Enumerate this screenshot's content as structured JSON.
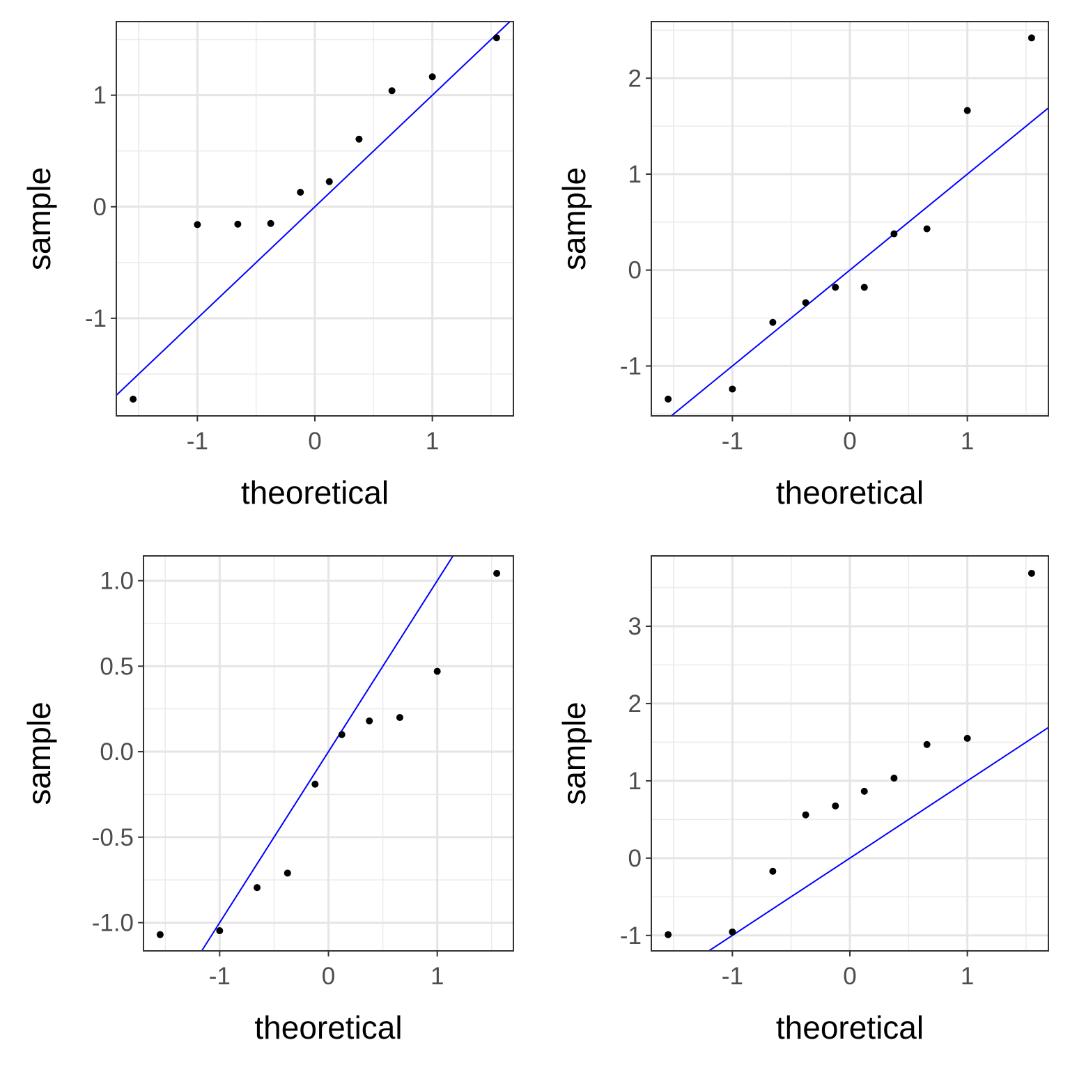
{
  "chart_data": [
    {
      "type": "scatter",
      "title": "",
      "xlabel": "theoretical",
      "ylabel": "sample",
      "xlim": [
        -1.69,
        1.69
      ],
      "ylim": [
        -1.875,
        1.66
      ],
      "xticks": [
        -1,
        0,
        1
      ],
      "xtick_labels": [
        "-1",
        "0",
        "1"
      ],
      "yticks": [
        -1,
        0,
        1
      ],
      "ytick_labels": [
        "-1",
        "0",
        "1"
      ],
      "x": [
        -1.547,
        -1.0,
        -0.656,
        -0.376,
        -0.123,
        0.123,
        0.376,
        0.656,
        1.0,
        1.547
      ],
      "y": [
        -1.725,
        -0.16,
        -0.156,
        -0.15,
        0.13,
        0.225,
        0.606,
        1.04,
        1.165,
        1.515
      ],
      "reference_line": {
        "slope": 1,
        "intercept": 0,
        "color": "#0000ff"
      },
      "grid": true
    },
    {
      "type": "scatter",
      "title": "",
      "xlabel": "theoretical",
      "ylabel": "sample",
      "xlim": [
        -1.69,
        1.69
      ],
      "ylim": [
        -1.52,
        2.59
      ],
      "xticks": [
        -1,
        0,
        1
      ],
      "xtick_labels": [
        "-1",
        "0",
        "1"
      ],
      "yticks": [
        -1,
        0,
        1,
        2
      ],
      "ytick_labels": [
        "-1",
        "0",
        "1",
        "2"
      ],
      "x": [
        -1.547,
        -1.0,
        -0.656,
        -0.376,
        -0.123,
        0.123,
        0.376,
        0.656,
        1.0,
        1.547
      ],
      "y": [
        -1.345,
        -1.24,
        -0.545,
        -0.34,
        -0.18,
        -0.18,
        0.378,
        0.43,
        1.663,
        2.42
      ],
      "reference_line": {
        "slope": 1,
        "intercept": 0,
        "color": "#0000ff"
      },
      "grid": true
    },
    {
      "type": "scatter",
      "title": "",
      "xlabel": "theoretical",
      "ylabel": "sample",
      "xlim": [
        -1.7,
        1.7
      ],
      "ylim": [
        -1.165,
        1.145
      ],
      "xticks": [
        -1,
        0,
        1
      ],
      "xtick_labels": [
        "-1",
        "0",
        "1"
      ],
      "yticks": [
        -1.0,
        -0.5,
        0.0,
        0.5,
        1.0
      ],
      "ytick_labels": [
        "-1.0",
        "-0.5",
        "0.0",
        "0.5",
        "1.0"
      ],
      "x": [
        -1.547,
        -1.0,
        -0.656,
        -0.376,
        -0.123,
        0.123,
        0.376,
        0.656,
        1.0,
        1.547
      ],
      "y": [
        -1.07,
        -1.047,
        -0.795,
        -0.71,
        -0.19,
        0.1,
        0.18,
        0.2,
        0.47,
        1.043
      ],
      "reference_line": {
        "slope": 1,
        "intercept": 0,
        "color": "#0000ff"
      },
      "grid": true
    },
    {
      "type": "scatter",
      "title": "",
      "xlabel": "theoretical",
      "ylabel": "sample",
      "xlim": [
        -1.69,
        1.69
      ],
      "ylim": [
        -1.2,
        3.91
      ],
      "xticks": [
        -1,
        0,
        1
      ],
      "xtick_labels": [
        "-1",
        "0",
        "1"
      ],
      "yticks": [
        -1,
        0,
        1,
        2,
        3
      ],
      "ytick_labels": [
        "-1",
        "0",
        "1",
        "2",
        "3"
      ],
      "x": [
        -1.547,
        -1.0,
        -0.656,
        -0.376,
        -0.123,
        0.123,
        0.376,
        0.656,
        1.0,
        1.547
      ],
      "y": [
        -0.99,
        -0.955,
        -0.17,
        0.56,
        0.675,
        0.865,
        1.035,
        1.47,
        1.55,
        3.685
      ],
      "reference_line": {
        "slope": 1,
        "intercept": 0,
        "color": "#0000ff"
      },
      "grid": true
    }
  ]
}
